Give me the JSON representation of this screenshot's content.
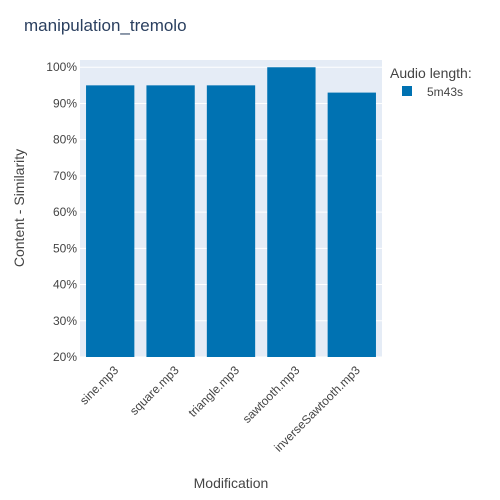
{
  "chart_data": {
    "type": "bar",
    "title": "manipulation_tremolo",
    "xlabel": "Modification",
    "ylabel": "Content - Similarity",
    "categories": [
      "sine.mp3",
      "square.mp3",
      "triangle.mp3",
      "sawtooth.mp3",
      "inverseSawtooth.mp3"
    ],
    "series": [
      {
        "name": "5m43s",
        "values": [
          95,
          95,
          95,
          100,
          93
        ],
        "color": "#0072b2"
      }
    ],
    "ylim": [
      20,
      102
    ],
    "yticks": [
      20,
      30,
      40,
      50,
      60,
      70,
      80,
      90,
      100
    ],
    "ytick_labels": [
      "20%",
      "30%",
      "40%",
      "50%",
      "60%",
      "70%",
      "80%",
      "90%",
      "100%"
    ],
    "grid": true,
    "legend": {
      "title": "Audio length:",
      "position": "right"
    },
    "colors": {
      "plot_bg": "#e5ecf6",
      "grid": "#ffffff",
      "text": "#444444",
      "title": "#2a3f5f"
    }
  }
}
